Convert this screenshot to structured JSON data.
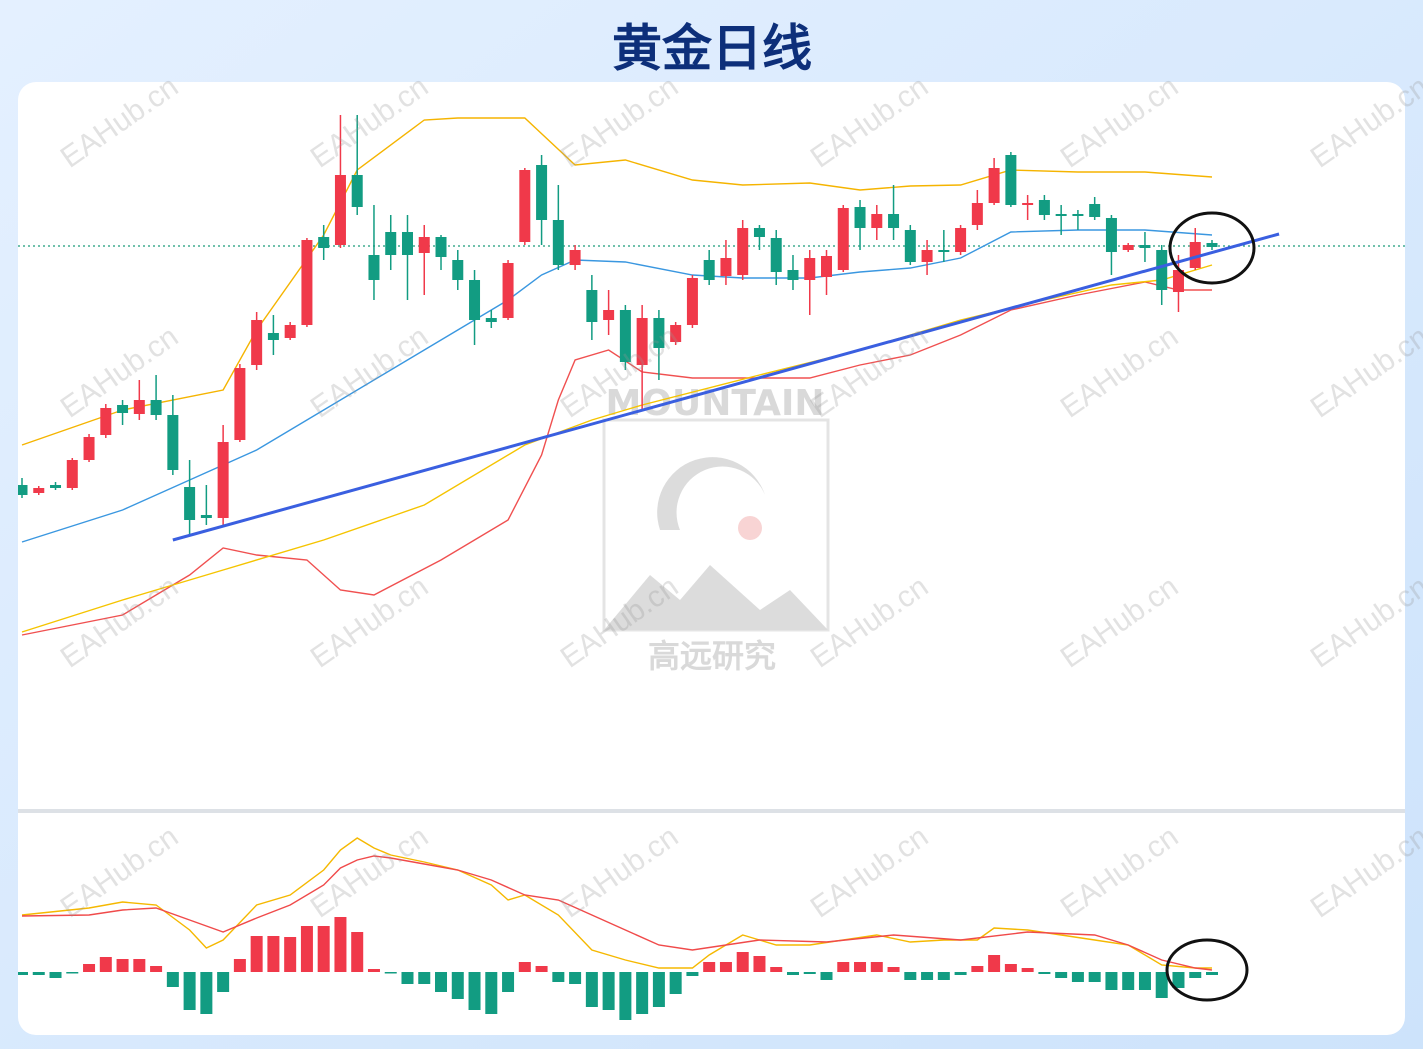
{
  "watermark": "EAHub.cn",
  "logo_text": "MOUNTAIN",
  "logo_subtext": "高远研究",
  "chart_data": [
    {
      "type": "candlestick",
      "title": "黄金日线",
      "up_color": "#f0394a",
      "down_color": "#129c82",
      "ylim": [
        200,
        900
      ],
      "open": [
        515,
        507,
        515,
        512,
        540,
        565,
        595,
        586,
        600,
        585,
        513,
        485,
        482,
        560,
        635,
        667,
        662,
        675,
        763,
        755,
        825,
        745,
        768,
        768,
        747,
        763,
        740,
        720,
        682,
        682,
        758,
        835,
        780,
        735,
        710,
        680,
        690,
        635,
        682,
        658,
        675,
        740,
        724,
        725,
        772,
        762,
        730,
        720,
        723,
        730,
        793,
        772,
        786,
        770,
        738,
        750,
        748,
        775,
        797,
        845,
        795,
        800,
        786,
        786,
        796,
        782,
        750,
        755,
        750,
        708,
        732,
        757
      ],
      "high": [
        522,
        514,
        518,
        542,
        566,
        596,
        600,
        620,
        625,
        605,
        540,
        515,
        575,
        636,
        688,
        685,
        678,
        762,
        775,
        885,
        885,
        795,
        785,
        785,
        775,
        765,
        750,
        730,
        690,
        740,
        832,
        845,
        815,
        755,
        725,
        710,
        695,
        695,
        690,
        678,
        725,
        750,
        760,
        780,
        775,
        770,
        745,
        750,
        750,
        795,
        800,
        795,
        815,
        775,
        760,
        770,
        775,
        810,
        842,
        848,
        805,
        805,
        795,
        790,
        803,
        785,
        757,
        768,
        755,
        745,
        772,
        760
      ],
      "low": [
        502,
        505,
        510,
        510,
        538,
        562,
        575,
        580,
        580,
        525,
        465,
        475,
        475,
        558,
        630,
        645,
        660,
        673,
        740,
        752,
        785,
        700,
        730,
        700,
        705,
        730,
        710,
        655,
        672,
        680,
        755,
        755,
        730,
        730,
        660,
        665,
        630,
        590,
        620,
        655,
        672,
        715,
        715,
        720,
        750,
        715,
        710,
        685,
        705,
        728,
        750,
        760,
        760,
        735,
        725,
        738,
        745,
        770,
        795,
        793,
        780,
        780,
        765,
        770,
        780,
        725,
        748,
        738,
        695,
        688,
        730,
        750
      ],
      "close": [
        505,
        512,
        512,
        540,
        563,
        592,
        587,
        600,
        585,
        530,
        480,
        482,
        558,
        632,
        680,
        660,
        675,
        760,
        752,
        825,
        793,
        720,
        745,
        745,
        763,
        743,
        720,
        680,
        678,
        737,
        830,
        780,
        735,
        750,
        678,
        690,
        638,
        682,
        652,
        675,
        722,
        720,
        742,
        772,
        763,
        728,
        720,
        742,
        744,
        792,
        772,
        786,
        772,
        738,
        750,
        748,
        772,
        797,
        832,
        795,
        797,
        785,
        784,
        784,
        783,
        748,
        755,
        752,
        710,
        730,
        758,
        753
      ],
      "lines": [
        {
          "color": "#f5b400",
          "x": [
            0,
            6,
            12,
            14,
            18,
            20,
            24,
            26,
            30,
            33,
            36,
            40,
            43,
            47,
            50,
            53,
            56,
            59,
            63,
            67,
            71
          ],
          "values": [
            555,
            590,
            610,
            670,
            765,
            830,
            880,
            882,
            882,
            835,
            840,
            820,
            815,
            817,
            810,
            814,
            815,
            830,
            828,
            828,
            823
          ]
        },
        {
          "color": "#3a97e0",
          "x": [
            0,
            6,
            10,
            14,
            18,
            22,
            26,
            29,
            31,
            33,
            36,
            40,
            43,
            47,
            50,
            53,
            56,
            59,
            63,
            67,
            71
          ],
          "values": [
            458,
            490,
            520,
            550,
            590,
            630,
            670,
            700,
            725,
            740,
            738,
            725,
            722,
            722,
            728,
            732,
            742,
            768,
            770,
            770,
            765
          ]
        },
        {
          "color": "#f05050",
          "x": [
            0,
            6,
            10,
            12,
            14,
            17,
            19,
            21,
            25,
            29,
            31,
            32,
            33,
            35,
            37,
            40,
            43,
            47,
            50,
            53,
            56,
            59,
            63,
            67,
            69,
            71
          ],
          "values": [
            365,
            385,
            425,
            452,
            445,
            440,
            410,
            405,
            440,
            480,
            545,
            600,
            640,
            650,
            628,
            622,
            622,
            622,
            635,
            645,
            665,
            690,
            705,
            718,
            710,
            710
          ]
        },
        {
          "color": "#f5c400",
          "x": [
            0,
            6,
            12,
            18,
            24,
            30,
            34,
            37,
            44,
            50,
            56,
            61,
            65,
            68,
            71
          ],
          "values": [
            368,
            400,
            430,
            460,
            495,
            555,
            580,
            595,
            625,
            650,
            680,
            700,
            715,
            720,
            735
          ]
        }
      ],
      "trendline": {
        "color": "#3a5fe0",
        "x": [
          9,
          75
        ],
        "values": [
          460,
          766
        ]
      },
      "reference_line": {
        "color": "#1a9c7a",
        "value": 754
      }
    },
    {
      "type": "macd",
      "ylim": [
        -60,
        150
      ],
      "up_color": "#f0394a",
      "down_color": "#129c82",
      "histogram": [
        -3,
        -3,
        -6,
        -1,
        8,
        15,
        13,
        13,
        6,
        -15,
        -38,
        -42,
        -20,
        13,
        36,
        36,
        35,
        46,
        46,
        55,
        40,
        3,
        -1,
        -12,
        -12,
        -20,
        -27,
        -38,
        -42,
        -20,
        10,
        6,
        -10,
        -12,
        -35,
        -38,
        -48,
        -42,
        -35,
        -22,
        -4,
        10,
        10,
        20,
        16,
        5,
        -3,
        -2,
        -8,
        10,
        10,
        10,
        5,
        -8,
        -8,
        -8,
        -3,
        6,
        17,
        8,
        4,
        -2,
        -6,
        -10,
        -10,
        -18,
        -18,
        -18,
        -26,
        -16,
        -6,
        -3
      ],
      "lines": [
        {
          "color": "#f5b800",
          "x": [
            0,
            4,
            6,
            8,
            10,
            11,
            12,
            14,
            16,
            18,
            19,
            20,
            21,
            22,
            24,
            26,
            28,
            29,
            30,
            32,
            34,
            36,
            38,
            40,
            41,
            43,
            45,
            47,
            49,
            51,
            53,
            55,
            57,
            58,
            60,
            62,
            64,
            66,
            68,
            70,
            71
          ],
          "values": [
            57,
            64,
            70,
            67,
            42,
            24,
            32,
            67,
            77,
            102,
            122,
            134,
            124,
            117,
            110,
            102,
            87,
            72,
            77,
            57,
            22,
            12,
            4,
            4,
            17,
            37,
            27,
            27,
            32,
            37,
            30,
            32,
            32,
            44,
            42,
            37,
            32,
            27,
            7,
            4,
            4
          ]
        },
        {
          "color": "#f04a4a",
          "x": [
            0,
            4,
            6,
            8,
            10,
            12,
            14,
            16,
            18,
            19,
            20,
            21,
            22,
            24,
            26,
            28,
            30,
            32,
            34,
            36,
            38,
            40,
            42,
            44,
            48,
            52,
            56,
            60,
            64,
            66,
            68,
            70,
            71
          ],
          "values": [
            56,
            57,
            62,
            64,
            52,
            40,
            54,
            67,
            87,
            104,
            112,
            116,
            114,
            108,
            102,
            92,
            77,
            72,
            57,
            42,
            27,
            22,
            27,
            32,
            30,
            37,
            32,
            40,
            37,
            27,
            12,
            4,
            2
          ]
        }
      ]
    }
  ]
}
